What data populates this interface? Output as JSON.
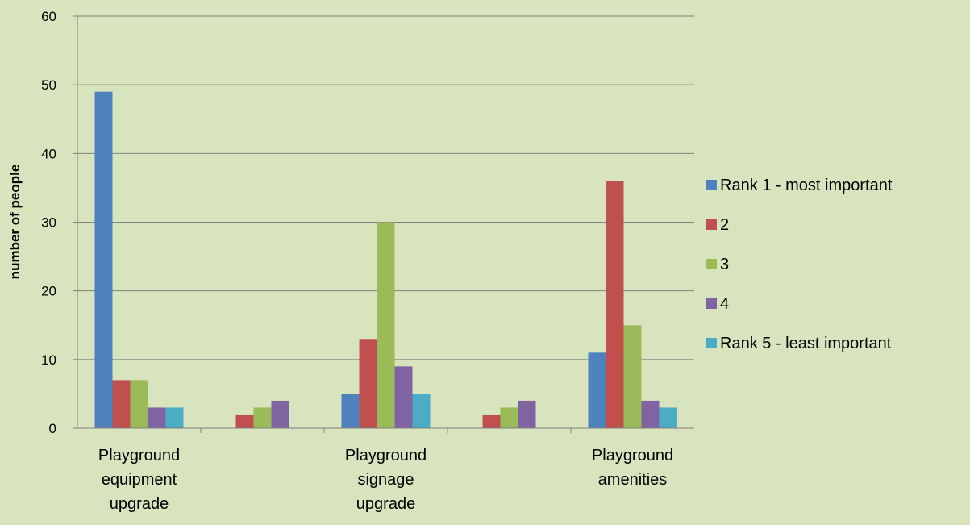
{
  "chart_data": {
    "type": "bar",
    "title": "",
    "xlabel": "",
    "ylabel": "number of people",
    "ylim": [
      0,
      60
    ],
    "yticks": [
      0,
      10,
      20,
      30,
      40,
      50,
      60
    ],
    "grid": true,
    "legend_position": "right",
    "categories": [
      [
        "Playground",
        "equipment",
        "upgrade"
      ],
      [],
      [
        "Playground",
        "signage",
        "upgrade"
      ],
      [],
      [
        "Playground",
        "amenities"
      ]
    ],
    "series": [
      {
        "name": "Rank 1 - most important",
        "color": "#4f81bd",
        "values": [
          49,
          null,
          5,
          null,
          11
        ]
      },
      {
        "name": "2",
        "color": "#c0504d",
        "values": [
          7,
          2,
          13,
          2,
          36
        ]
      },
      {
        "name": "3",
        "color": "#9bbb59",
        "values": [
          7,
          3,
          30,
          3,
          15
        ]
      },
      {
        "name": "4",
        "color": "#8064a2",
        "values": [
          3,
          4,
          9,
          4,
          4
        ]
      },
      {
        "name": "Rank 5 - least important",
        "color": "#4bacc6",
        "values": [
          3,
          null,
          5,
          null,
          3
        ]
      }
    ],
    "background_color": "#d7e4bd",
    "gridline_color": "#808080"
  }
}
